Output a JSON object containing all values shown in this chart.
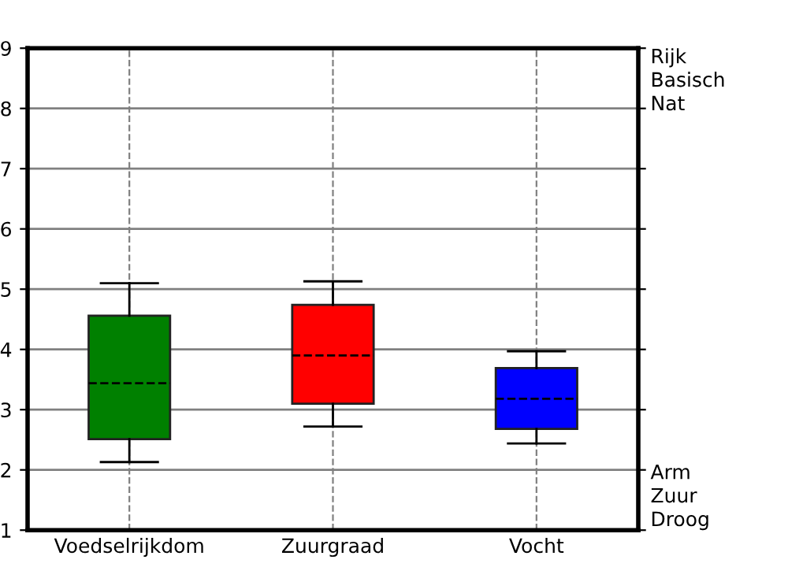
{
  "chart_data": {
    "type": "box",
    "categories": [
      "Voedselrijkdom",
      "Zuurgraad",
      "Vocht"
    ],
    "boxes": [
      {
        "low": 2.13,
        "q1": 2.51,
        "median": 3.44,
        "q3": 4.56,
        "high": 5.1
      },
      {
        "low": 2.72,
        "q1": 3.1,
        "median": 3.9,
        "q3": 4.74,
        "high": 5.13
      },
      {
        "low": 2.44,
        "q1": 2.68,
        "median": 3.18,
        "q3": 3.69,
        "high": 3.97
      }
    ],
    "colors": [
      "#008000",
      "#ff0000",
      "#0000ff"
    ],
    "ylim": [
      1,
      9
    ],
    "yticks": [
      1,
      2,
      3,
      4,
      5,
      6,
      7,
      8,
      9
    ],
    "annotations": [
      "Rijk\nBasisch\nNat",
      "Arm\nZuur\nDroog"
    ],
    "grid": true,
    "line_style": "dashed"
  }
}
